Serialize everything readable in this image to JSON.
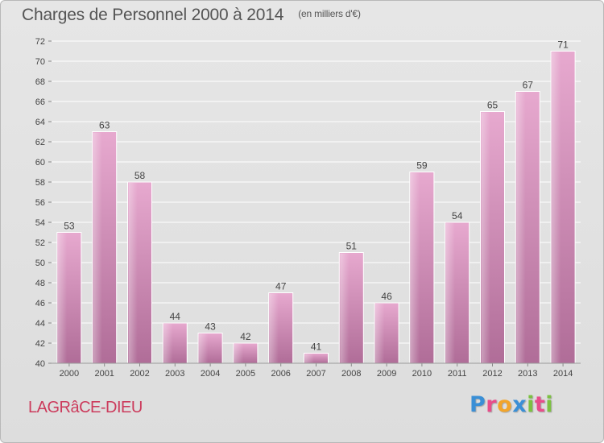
{
  "header": {
    "title": "Charges de Personnel 2000 à 2014",
    "subtitle": "(en milliers d'€)"
  },
  "footer": {
    "commune": "LAGRâCE-DIEU",
    "logo_letters": [
      "P",
      "r",
      "o",
      "x",
      "i",
      "t",
      "i"
    ],
    "logo_colors": [
      "#3a8fd6",
      "#e84d8a",
      "#f2a52b",
      "#3a8fd6",
      "#7cc142",
      "#e84d8a",
      "#7cc142"
    ]
  },
  "colors": {
    "bar_light": "#e7a9cf",
    "bar_dark": "#b06d98",
    "axis_text": "#444444",
    "grid": "#ffffff"
  },
  "chart_data": {
    "type": "bar",
    "title": "Charges de Personnel 2000 à 2014",
    "subtitle": "(en milliers d'€)",
    "categories": [
      "2000",
      "2001",
      "2002",
      "2003",
      "2004",
      "2005",
      "2006",
      "2007",
      "2008",
      "2009",
      "2010",
      "2011",
      "2012",
      "2013",
      "2014"
    ],
    "values": [
      53,
      63,
      58,
      44,
      43,
      42,
      47,
      41,
      51,
      46,
      59,
      54,
      65,
      67,
      71
    ],
    "ylim": [
      40,
      72
    ],
    "yticks": [
      40,
      42,
      44,
      46,
      48,
      50,
      52,
      54,
      56,
      58,
      60,
      62,
      64,
      66,
      68,
      70,
      72
    ],
    "grid": true,
    "xlabel": "",
    "ylabel": ""
  }
}
